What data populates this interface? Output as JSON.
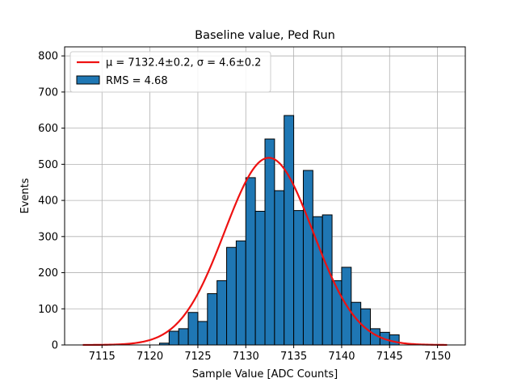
{
  "chart_data": {
    "type": "bar",
    "title": "Baseline value, Ped Run",
    "xlabel": "Sample Value [ADC Counts]",
    "ylabel": "Events",
    "xlim": [
      7111.1,
      7152.9
    ],
    "ylim": [
      0,
      825
    ],
    "xticks": [
      7115,
      7120,
      7125,
      7130,
      7135,
      7140,
      7145,
      7150
    ],
    "yticks": [
      0,
      100,
      200,
      300,
      400,
      500,
      600,
      700,
      800
    ],
    "grid": true,
    "legend_position": "top-left",
    "bar_color": "#1f77b4",
    "bar_edge_color": "#000000",
    "fit_color": "#ee1111",
    "bin_edges": [
      7121,
      7122,
      7123,
      7124,
      7125,
      7126,
      7127,
      7128,
      7129,
      7130,
      7131,
      7132,
      7133,
      7134,
      7135,
      7136,
      7137,
      7138,
      7139,
      7140,
      7141,
      7142,
      7143,
      7144,
      7145,
      7146
    ],
    "counts": [
      5,
      38,
      45,
      90,
      65,
      142,
      178,
      270,
      288,
      463,
      370,
      570,
      427,
      635,
      372,
      483,
      355,
      360,
      178,
      215,
      118,
      100,
      45,
      35,
      28,
      10
    ],
    "fit": {
      "mu": 7132.4,
      "sigma": 4.6,
      "amplitude": 518,
      "x_range": [
        7113,
        7151
      ]
    },
    "legend": [
      {
        "kind": "line",
        "label": "μ = 7132.4±0.2, σ = 4.6±0.2"
      },
      {
        "kind": "patch",
        "label": "RMS = 4.68"
      }
    ]
  }
}
